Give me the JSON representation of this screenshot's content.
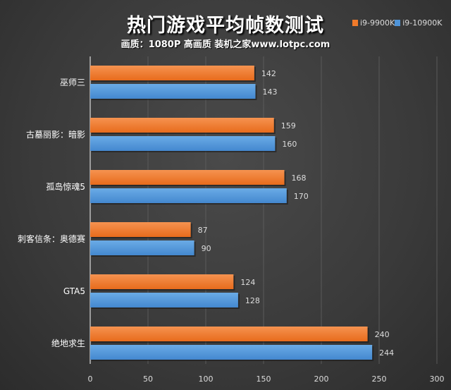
{
  "chart_data": {
    "type": "bar",
    "orientation": "horizontal",
    "title": "热门游戏平均帧数测试",
    "subtitle": "画质：1080P 高画质 装机之家www.lotpc.com",
    "categories": [
      "巫师三",
      "古墓丽影：暗影",
      "孤岛惊魂5",
      "刺客信条：奥德赛",
      "GTA5",
      "绝地求生"
    ],
    "series": [
      {
        "name": "i9-9900K",
        "color": "#f07a2a",
        "values": [
          142,
          159,
          168,
          87,
          124,
          240
        ]
      },
      {
        "name": "i9-10900K",
        "color": "#4f94d8",
        "values": [
          143,
          160,
          170,
          90,
          128,
          244
        ]
      }
    ],
    "xlim": [
      0,
      300
    ],
    "xticks": [
      0,
      50,
      100,
      150,
      200,
      250,
      300
    ],
    "grid": true,
    "legend": "top-right"
  }
}
